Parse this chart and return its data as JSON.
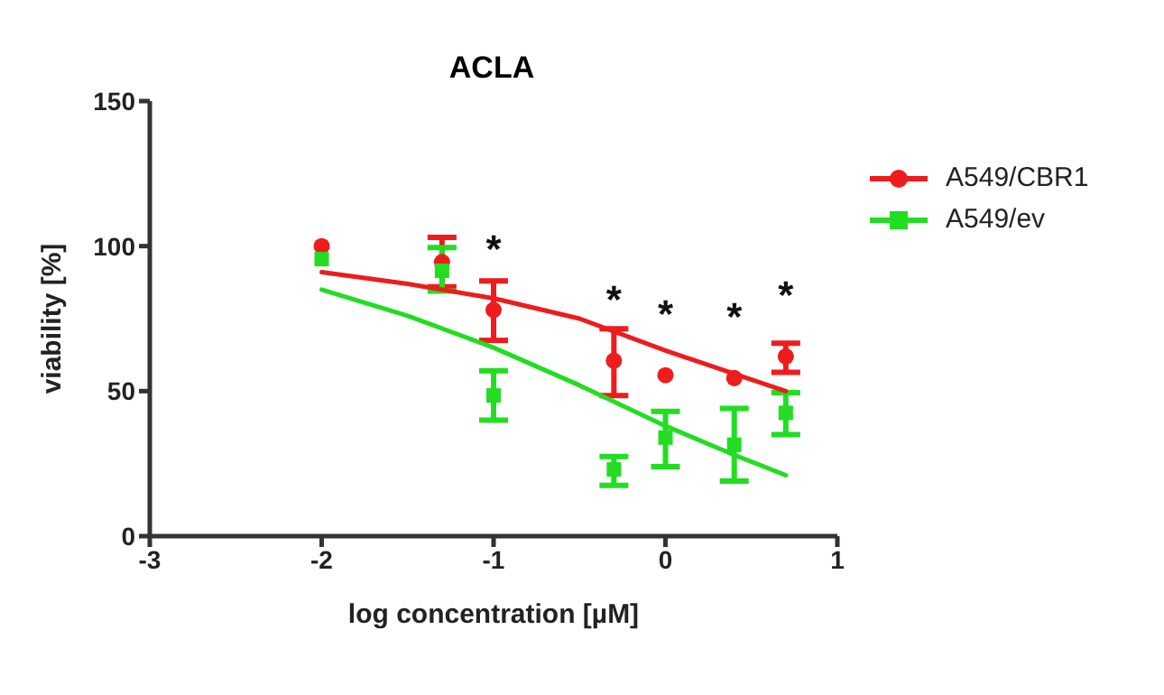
{
  "chart_data": {
    "type": "scatter",
    "title": "ACLA",
    "xlabel": "log concentration [µM]",
    "ylabel": "viability [%]",
    "xlim": [
      -3,
      1
    ],
    "xticks": [
      -3,
      -2,
      -1,
      0,
      1
    ],
    "ylim": [
      0,
      150
    ],
    "yticks": [
      0,
      50,
      100,
      150
    ],
    "grid": false,
    "legend": "top right",
    "series": [
      {
        "name": "A549/CBR1",
        "marker": "circle",
        "color": "#ee1c1c",
        "x": [
          -2,
          -1.3,
          -1,
          -0.3,
          0,
          0.4,
          0.7
        ],
        "values": [
          100,
          94.5,
          78,
          60.5,
          55.5,
          54.5,
          62
        ],
        "errors": [
          null,
          [
            86,
            103
          ],
          [
            67.5,
            88
          ],
          [
            48.5,
            71.5
          ],
          null,
          null,
          [
            56.5,
            66.5
          ]
        ]
      },
      {
        "name": "A549/ev",
        "marker": "square",
        "color": "#22dd22",
        "x": [
          -2,
          -1.3,
          -1,
          -0.3,
          0,
          0.4,
          0.7
        ],
        "values": [
          95.5,
          91.5,
          48.5,
          23,
          34,
          31.5,
          42.5
        ],
        "errors": [
          null,
          [
            84.5,
            99.5
          ],
          [
            40,
            57
          ],
          [
            17.5,
            27.5
          ],
          [
            24,
            43
          ],
          [
            19,
            44
          ],
          [
            35,
            49.5
          ]
        ]
      },
      {
        "type": "line",
        "marker": "none",
        "color": "#ee1c1c",
        "x": [
          -2,
          -1.5,
          -1,
          -0.5,
          0,
          0.4,
          0.7
        ],
        "values": [
          91,
          87,
          82,
          75,
          64,
          56,
          50
        ]
      },
      {
        "type": "line",
        "marker": "none",
        "color": "#22dd22",
        "x": [
          -2,
          -1.5,
          -1,
          -0.5,
          0,
          0.4,
          0.7
        ],
        "values": [
          85,
          76,
          65,
          52,
          38,
          28,
          21
        ]
      }
    ],
    "annotations": [
      {
        "text": "*",
        "x": -1,
        "y": 78
      },
      {
        "text": "*",
        "x": -0.3,
        "y": 60.5
      },
      {
        "text": "*",
        "x": 0,
        "y": 55.5
      },
      {
        "text": "*",
        "x": 0.4,
        "y": 54.5
      },
      {
        "text": "*",
        "x": 0.7,
        "y": 62
      }
    ]
  }
}
